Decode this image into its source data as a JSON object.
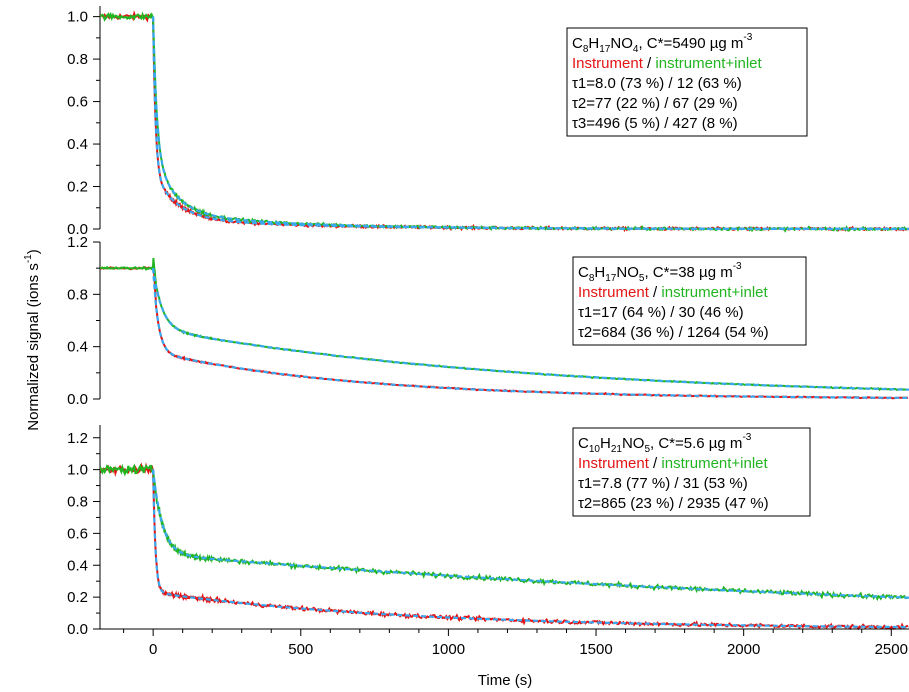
{
  "colors": {
    "instrument": "#e41414",
    "instrument_inlet": "#22b522",
    "fit": "#3aa8f0",
    "axis": "#000000"
  },
  "chart_data": {
    "type": "line",
    "xlabel": "Time (s)",
    "ylabel": "Normalized signal (ions s-1)",
    "ylabel_main": "Normalized signal (ions s",
    "ylabel_sup": "-1",
    "ylabel_close": ")",
    "xlim": [
      -180,
      2560
    ],
    "xticks": [
      0,
      500,
      1000,
      1500,
      2000,
      2500
    ],
    "panels": [
      {
        "id": "top",
        "ylim": [
          0,
          1.05
        ],
        "yticks": [
          0.0,
          0.2,
          0.4,
          0.6,
          0.8,
          1.0
        ],
        "ytick_labels": [
          "0.0",
          "0.2",
          "0.4",
          "0.6",
          "0.8",
          "1.0"
        ],
        "legend": {
          "formula_parts": [
            [
              "C",
              "n"
            ],
            [
              "8",
              "s"
            ],
            [
              "H",
              "n"
            ],
            [
              "17",
              "s"
            ],
            [
              "NO",
              "n"
            ],
            [
              "4",
              "s"
            ],
            [
              ", C*=5490 µg m",
              "n"
            ],
            [
              "-3",
              "p"
            ]
          ],
          "instrument_label": "Instrument",
          "separator": " / ",
          "inlet_label": "instrument+inlet",
          "lines": [
            "τ1=8.0 (73 %) / 12 (63 %)",
            "τ2=77 (22 %) / 67 (29 %)",
            "τ3=496 (5 %) / 427 (8 %)"
          ]
        },
        "series": [
          {
            "name": "Instrument",
            "baseline": 1.0,
            "fractions": [
              0.73,
              0.22,
              0.05
            ],
            "taus": [
              8.0,
              77,
              496
            ],
            "noise": 0.012
          },
          {
            "name": "instrument+inlet",
            "baseline": 1.0,
            "fractions": [
              0.63,
              0.29,
              0.08
            ],
            "taus": [
              12,
              67,
              427
            ],
            "noise": 0.012
          }
        ]
      },
      {
        "id": "middle",
        "ylim": [
          0,
          1.2
        ],
        "yticks": [
          0.0,
          0.4,
          0.8,
          1.2
        ],
        "ytick_labels": [
          "0.0",
          "0.4",
          "0.8",
          "1.2"
        ],
        "legend": {
          "formula_parts": [
            [
              "C",
              "n"
            ],
            [
              "8",
              "s"
            ],
            [
              "H",
              "n"
            ],
            [
              "17",
              "s"
            ],
            [
              "NO",
              "n"
            ],
            [
              "5",
              "s"
            ],
            [
              ",  C*=38 µg m",
              "n"
            ],
            [
              "-3",
              "p"
            ]
          ],
          "instrument_label": "Instrument",
          "separator": " / ",
          "inlet_label": "instrument+inlet",
          "lines": [
            "τ1=17 (64 %) / 30 (46 %)",
            "τ2=684 (36 %) / 1264 (54 %)"
          ]
        },
        "series": [
          {
            "name": "Instrument",
            "baseline": 1.0,
            "fractions": [
              0.64,
              0.36
            ],
            "taus": [
              17,
              684
            ],
            "noise": 0.008,
            "spike": 1.08
          },
          {
            "name": "instrument+inlet",
            "baseline": 1.0,
            "fractions": [
              0.46,
              0.54
            ],
            "taus": [
              30,
              1264
            ],
            "noise": 0.008,
            "spike": 1.1
          }
        ]
      },
      {
        "id": "bottom",
        "ylim": [
          0,
          1.28
        ],
        "yticks": [
          0.0,
          0.2,
          0.4,
          0.6,
          0.8,
          1.0,
          1.2
        ],
        "ytick_labels": [
          "0.0",
          "0.2",
          "0.4",
          "0.6",
          "0.8",
          "1.0",
          "1.2"
        ],
        "legend": {
          "formula_parts": [
            [
              "C",
              "n"
            ],
            [
              "10",
              "s"
            ],
            [
              "H",
              "n"
            ],
            [
              "21",
              "s"
            ],
            [
              "NO",
              "n"
            ],
            [
              "5",
              "s"
            ],
            [
              ",  C*=5.6 µg m",
              "n"
            ],
            [
              "-3",
              "p"
            ]
          ],
          "instrument_label": "Instrument",
          "separator": " / ",
          "inlet_label": "instrument+inlet",
          "lines": [
            "τ1=7.8 (77 %) / 31 (53 %)",
            "τ2=865 (23 %) / 2935 (47 %)"
          ]
        },
        "series": [
          {
            "name": "Instrument",
            "baseline": 1.0,
            "fractions": [
              0.77,
              0.23
            ],
            "taus": [
              7.8,
              865
            ],
            "noise": 0.022
          },
          {
            "name": "instrument+inlet",
            "baseline": 1.0,
            "fractions": [
              0.53,
              0.47
            ],
            "taus": [
              31,
              2935
            ],
            "noise": 0.025
          }
        ]
      }
    ]
  }
}
